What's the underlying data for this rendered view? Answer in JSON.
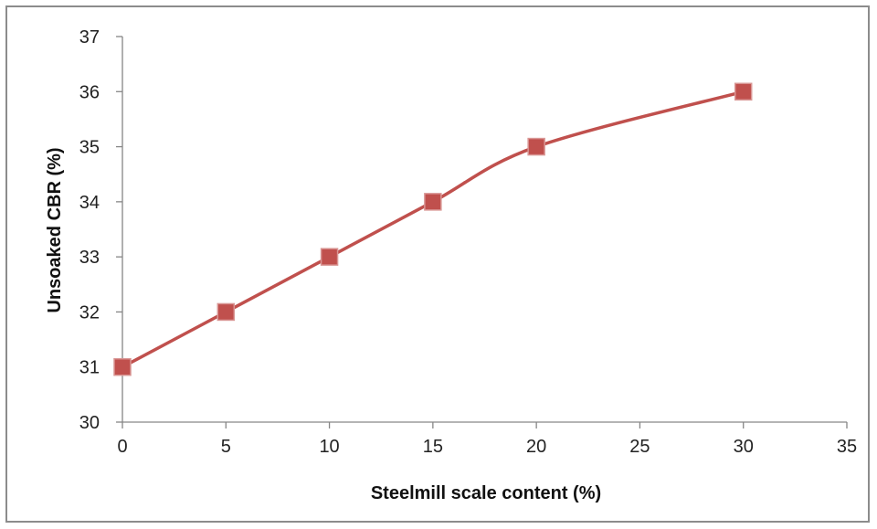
{
  "chart_data": {
    "type": "line",
    "title": "",
    "xlabel": "Steelmill scale content (%)",
    "ylabel": "Unsoaked CBR (%)",
    "xlim": [
      0,
      35
    ],
    "ylim": [
      30,
      37
    ],
    "x_ticks": [
      0,
      5,
      10,
      15,
      20,
      25,
      30,
      35
    ],
    "y_ticks": [
      30,
      31,
      32,
      33,
      34,
      35,
      36,
      37
    ],
    "grid": false,
    "legend": "none",
    "series": [
      {
        "color": "#c0504d",
        "marker": "square",
        "smooth": true,
        "points": [
          {
            "x": 0,
            "y": 31
          },
          {
            "x": 5,
            "y": 32
          },
          {
            "x": 10,
            "y": 33
          },
          {
            "x": 15,
            "y": 34
          },
          {
            "x": 20,
            "y": 35
          },
          {
            "x": 30,
            "y": 36
          }
        ]
      }
    ]
  }
}
